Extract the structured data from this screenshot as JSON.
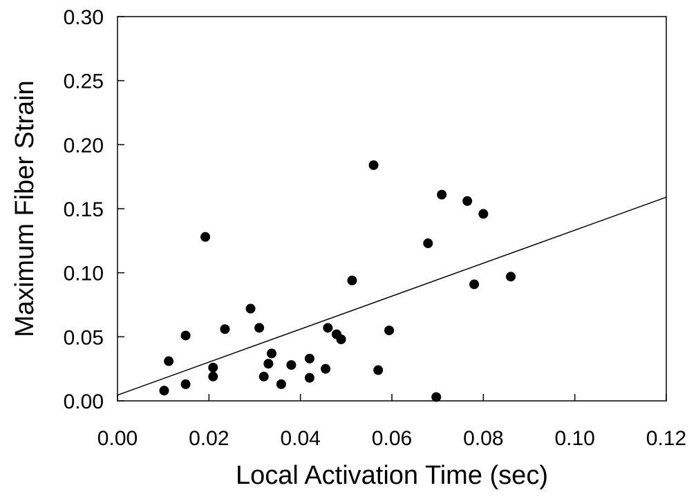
{
  "chart_data": {
    "type": "scatter",
    "title": "",
    "xlabel": "Local Activation Time (sec)",
    "ylabel": "Maximum Fiber Strain",
    "xlim": [
      0.0,
      0.12
    ],
    "ylim": [
      0.0,
      0.3
    ],
    "xticks": [
      "0.00",
      "0.02",
      "0.04",
      "0.06",
      "0.08",
      "0.10",
      "0.12"
    ],
    "yticks": [
      "0.00",
      "0.05",
      "0.10",
      "0.15",
      "0.20",
      "0.25",
      "0.30"
    ],
    "grid": false,
    "legend": "none",
    "point_color": "#000000",
    "line_color": "#000000",
    "points": [
      {
        "x": 0.0102,
        "y": 0.008
      },
      {
        "x": 0.0112,
        "y": 0.031
      },
      {
        "x": 0.0149,
        "y": 0.051
      },
      {
        "x": 0.0149,
        "y": 0.013
      },
      {
        "x": 0.0192,
        "y": 0.128
      },
      {
        "x": 0.0209,
        "y": 0.026
      },
      {
        "x": 0.0209,
        "y": 0.019
      },
      {
        "x": 0.0235,
        "y": 0.056
      },
      {
        "x": 0.0291,
        "y": 0.072
      },
      {
        "x": 0.031,
        "y": 0.057
      },
      {
        "x": 0.032,
        "y": 0.019
      },
      {
        "x": 0.033,
        "y": 0.029
      },
      {
        "x": 0.0337,
        "y": 0.037
      },
      {
        "x": 0.0358,
        "y": 0.013
      },
      {
        "x": 0.038,
        "y": 0.028
      },
      {
        "x": 0.042,
        "y": 0.033
      },
      {
        "x": 0.042,
        "y": 0.018
      },
      {
        "x": 0.0455,
        "y": 0.025
      },
      {
        "x": 0.046,
        "y": 0.057
      },
      {
        "x": 0.0479,
        "y": 0.052
      },
      {
        "x": 0.0489,
        "y": 0.048
      },
      {
        "x": 0.0513,
        "y": 0.094
      },
      {
        "x": 0.056,
        "y": 0.184
      },
      {
        "x": 0.057,
        "y": 0.024
      },
      {
        "x": 0.0594,
        "y": 0.055
      },
      {
        "x": 0.0679,
        "y": 0.123
      },
      {
        "x": 0.0697,
        "y": 0.003
      },
      {
        "x": 0.0709,
        "y": 0.161
      },
      {
        "x": 0.0765,
        "y": 0.156
      },
      {
        "x": 0.078,
        "y": 0.091
      },
      {
        "x": 0.08,
        "y": 0.146
      },
      {
        "x": 0.086,
        "y": 0.097
      }
    ],
    "regression_line": {
      "x": [
        0.0,
        0.12
      ],
      "y": [
        0.0045,
        0.159
      ]
    }
  }
}
